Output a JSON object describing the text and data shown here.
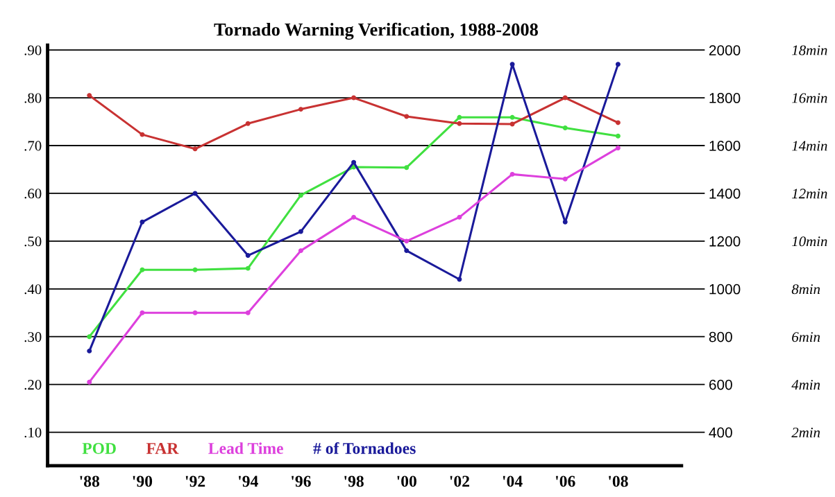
{
  "chart_data": {
    "type": "line",
    "title": "Tornado Warning Verification, 1988-2008",
    "categories": [
      "'88",
      "'90",
      "'92",
      "'94",
      "'96",
      "'98",
      "'00",
      "'02",
      "'04",
      "'06",
      "'08"
    ],
    "series": [
      {
        "name": "POD",
        "color": "#40e040",
        "axis": "y",
        "values": [
          0.3,
          0.44,
          0.44,
          0.443,
          0.596,
          0.655,
          0.654,
          0.759,
          0.759,
          0.737,
          0.72
        ]
      },
      {
        "name": "FAR",
        "color": "#c83232",
        "axis": "y",
        "values": [
          0.805,
          0.723,
          0.693,
          0.746,
          0.776,
          0.8,
          0.761,
          0.746,
          0.745,
          0.8,
          0.748
        ]
      },
      {
        "name": "Lead Time",
        "color": "#dd40dd",
        "axis": "y3",
        "values": [
          4.1,
          7.0,
          7.0,
          7.0,
          9.6,
          11.0,
          10.0,
          11.0,
          12.8,
          12.6,
          13.9
        ]
      },
      {
        "name": "# of Tornadoes",
        "color": "#1a1a9a",
        "axis": "y2",
        "values": [
          740,
          1280,
          1400,
          1140,
          1240,
          1530,
          1160,
          1040,
          1940,
          1280,
          1940
        ]
      }
    ],
    "ylim": [
      0.03,
      0.91
    ],
    "yticks": [
      {
        "value": 0.1,
        "label": ".10"
      },
      {
        "value": 0.2,
        "label": ".20"
      },
      {
        "value": 0.3,
        "label": ".30"
      },
      {
        "value": 0.4,
        "label": ".40"
      },
      {
        "value": 0.5,
        "label": ".50"
      },
      {
        "value": 0.6,
        "label": ".60"
      },
      {
        "value": 0.7,
        "label": ".70"
      },
      {
        "value": 0.8,
        "label": ".80"
      },
      {
        "value": 0.9,
        "label": ".90"
      }
    ],
    "y2lim": [
      260,
      2020
    ],
    "y2ticks": [
      400,
      600,
      800,
      1000,
      1200,
      1400,
      1600,
      1800,
      2000
    ],
    "y3lim": [
      0.6,
      18.2
    ],
    "y3ticks": [
      {
        "value": 2,
        "label": "2min"
      },
      {
        "value": 4,
        "label": "4min"
      },
      {
        "value": 6,
        "label": "6min"
      },
      {
        "value": 8,
        "label": "8min"
      },
      {
        "value": 10,
        "label": "10min"
      },
      {
        "value": 12,
        "label": "12min"
      },
      {
        "value": 14,
        "label": "14min"
      },
      {
        "value": 16,
        "label": "16min"
      },
      {
        "value": 18,
        "label": "18min"
      }
    ],
    "grid": "y",
    "legend": "bottom left",
    "marker": "circle",
    "line_style": "solid"
  }
}
